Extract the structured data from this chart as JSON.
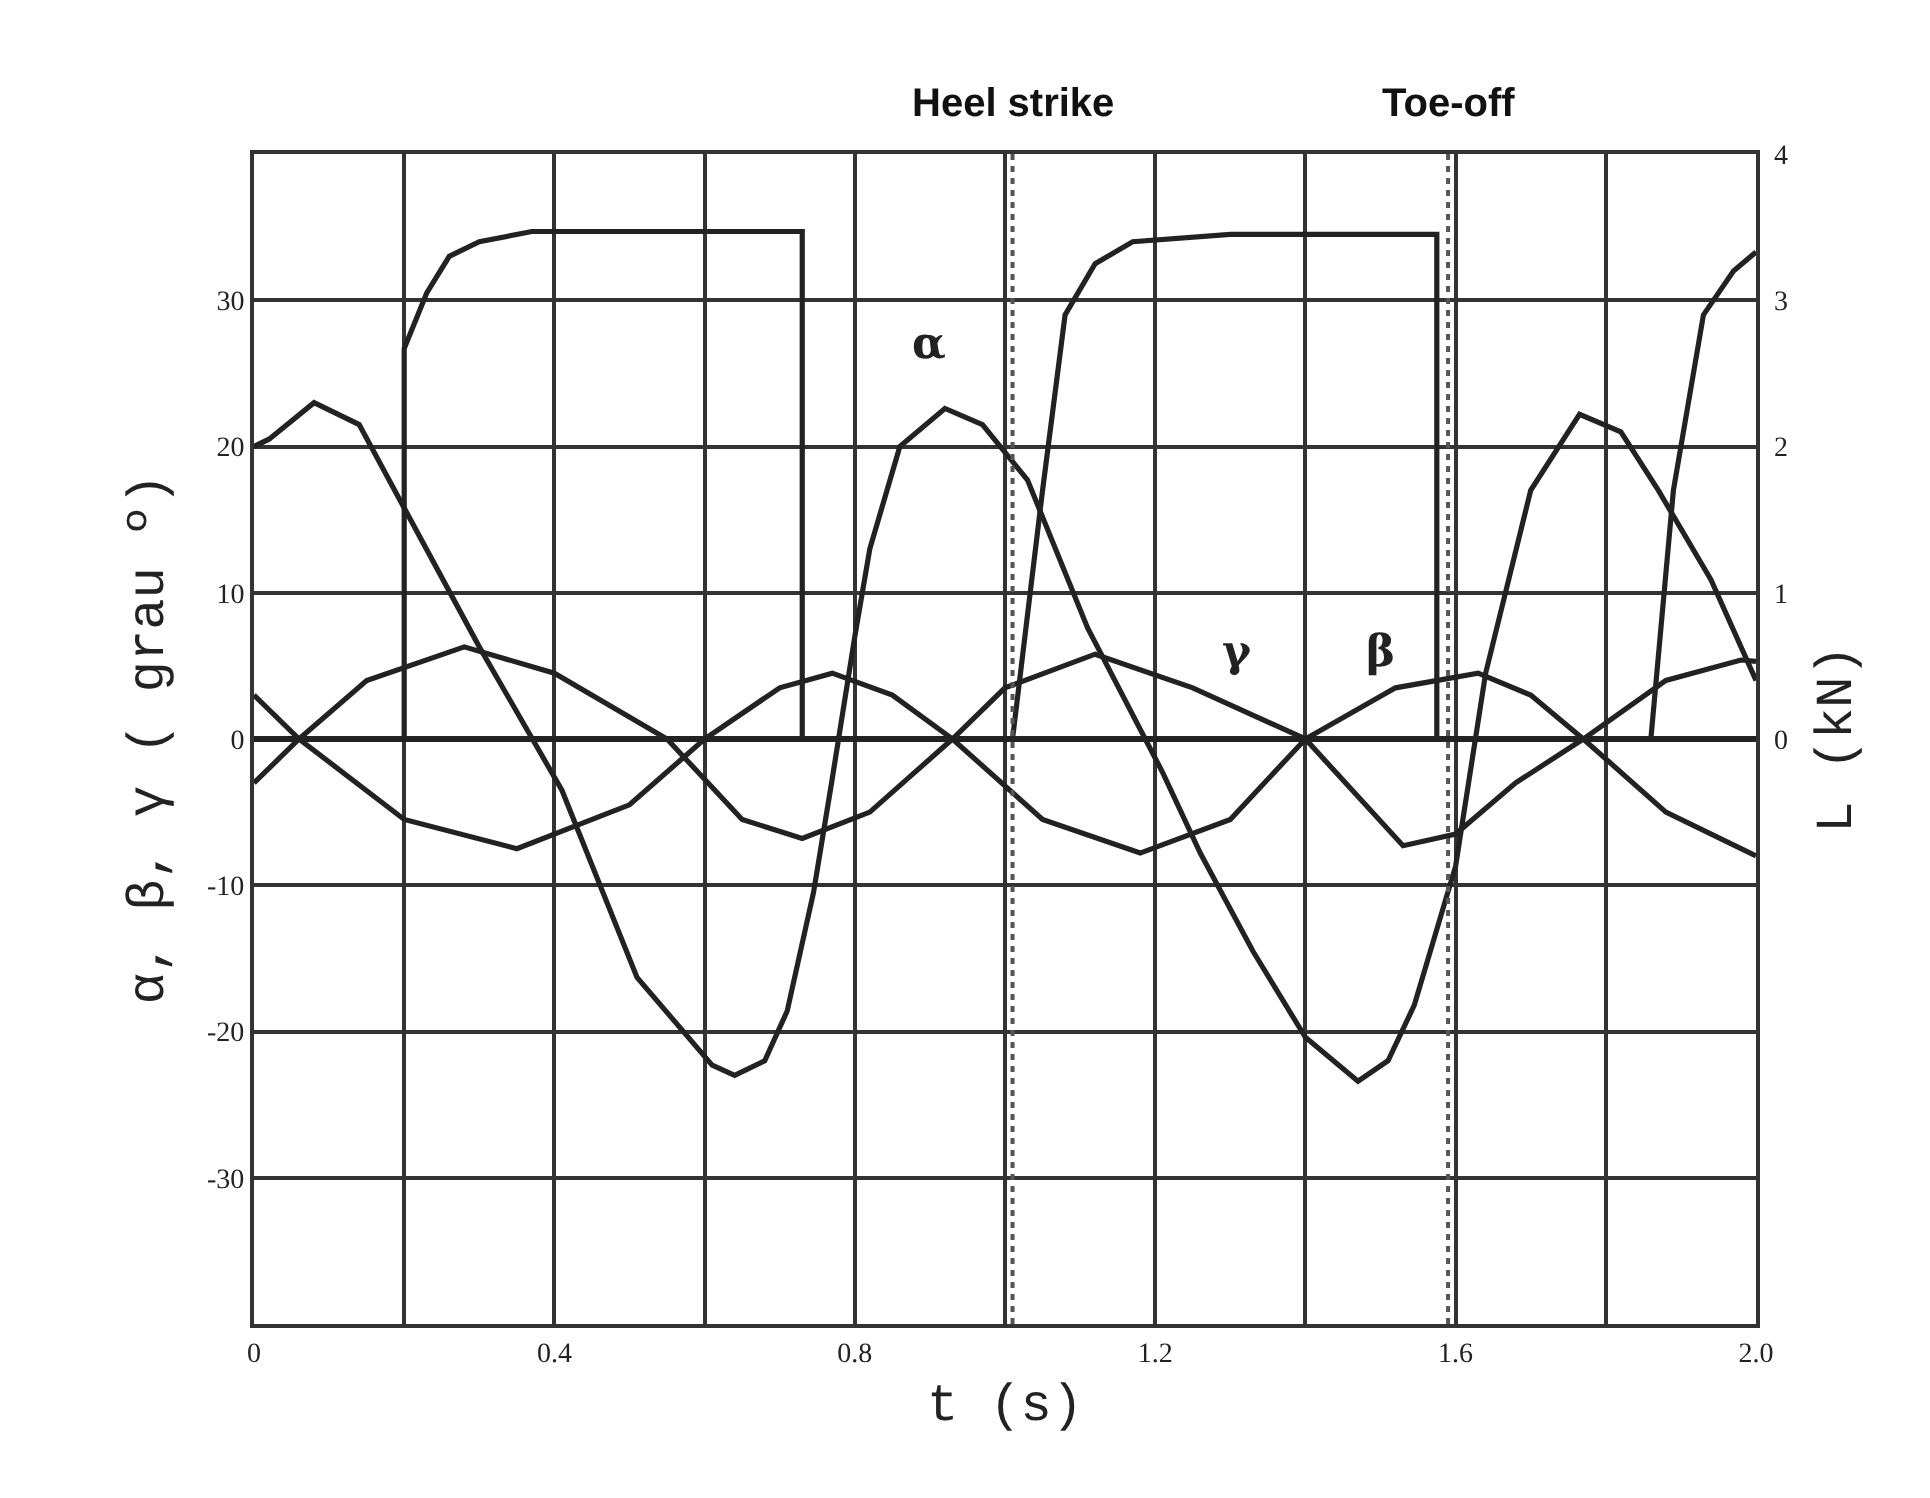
{
  "chart_data": {
    "type": "line",
    "xlabel": "t (s)",
    "ylabel": "α, β, γ ( grau º)",
    "y2label": "L (kN)",
    "xlim": [
      0,
      2
    ],
    "xticks": [
      0,
      {
        "value": 0.2,
        "label": null
      },
      {
        "value": 0.4,
        "label": "0.4"
      },
      {
        "value": 0.6,
        "label": null
      },
      {
        "value": 0.8,
        "label": "0.8"
      },
      {
        "value": 1,
        "label": null
      },
      {
        "value": 1.2,
        "label": "1.2"
      },
      {
        "value": 1.4,
        "label": null
      },
      {
        "value": 1.6,
        "label": "1.6"
      },
      {
        "value": 1.8,
        "label": null
      },
      {
        "value": 2,
        "label": "2.0"
      }
    ],
    "ylim": [
      -40,
      40
    ],
    "yticks": [
      -30,
      -20,
      -10,
      0,
      10,
      20,
      30
    ],
    "y2lim": [
      -4,
      4
    ],
    "y2ticks": [
      0,
      1,
      2,
      3,
      4
    ],
    "grid": true,
    "legend": false,
    "marker": "none",
    "line_style": "solid",
    "series": [
      {
        "name": "α",
        "color": "#222222",
        "x": [
          0,
          0.02,
          0.08,
          0.14,
          0.2,
          0.3,
          0.41,
          0.51,
          0.61,
          0.64,
          0.68,
          0.71,
          0.745,
          0.77,
          0.8,
          0.82,
          0.86,
          0.92,
          0.97,
          1.03,
          1.11,
          1.21,
          1.26,
          1.33,
          1.4,
          1.47,
          1.51,
          1.545,
          1.6,
          1.64,
          1.7,
          1.765,
          1.82,
          1.87,
          1.94,
          2.0
        ],
        "values": [
          20,
          20.5,
          23,
          21.5,
          15.8,
          6.3,
          -3.5,
          -16.3,
          -22.3,
          -23,
          -22,
          -18.6,
          -10.5,
          -2.7,
          7,
          13,
          20,
          22.6,
          21.5,
          17.7,
          7.6,
          -2.3,
          -7.8,
          -14.5,
          -20.4,
          -23.4,
          -22,
          -18.2,
          -8.7,
          4.5,
          17,
          22.2,
          21,
          17,
          10.9,
          4
        ]
      },
      {
        "name": "β",
        "color": "#222222",
        "x": [
          0,
          0.06,
          0.2,
          0.35,
          0.5,
          0.6,
          0.7,
          0.77,
          0.85,
          0.93,
          1.05,
          1.18,
          1.3,
          1.4,
          1.52,
          1.63,
          1.7,
          1.77,
          1.88,
          2.0
        ],
        "values": [
          3,
          0,
          -5.5,
          -7.5,
          -4.5,
          0,
          3.5,
          4.5,
          3,
          0,
          -5.5,
          -7.8,
          -5.5,
          0,
          3.5,
          4.5,
          3,
          0,
          -5,
          -8
        ]
      },
      {
        "name": "γ",
        "color": "#222222",
        "x": [
          0,
          0.06,
          0.15,
          0.28,
          0.4,
          0.55,
          0.65,
          0.73,
          0.82,
          0.93,
          1.0,
          1.12,
          1.25,
          1.4,
          1.53,
          1.6,
          1.68,
          1.77,
          1.88,
          1.98,
          2.0
        ],
        "values": [
          -3,
          0,
          4,
          6.3,
          4.5,
          0,
          -5.5,
          -6.8,
          -5,
          0,
          3.5,
          5.8,
          3.5,
          0,
          -7.3,
          -6.5,
          -3,
          0,
          4,
          5.4,
          5.3
        ]
      },
      {
        "color": "#222222",
        "axis": "y2",
        "x": [
          0,
          0.2,
          0.2,
          0.23,
          0.26,
          0.3,
          0.37,
          0.5,
          0.73,
          0.73,
          1.01,
          1.05,
          1.08,
          1.12,
          1.17,
          1.3,
          1.575,
          1.575,
          1.86,
          1.89,
          1.93,
          1.97,
          2.0
        ],
        "values": [
          0,
          0,
          2.67,
          3.05,
          3.3,
          3.4,
          3.47,
          3.47,
          3.47,
          0,
          0,
          1.7,
          2.9,
          3.25,
          3.4,
          3.45,
          3.45,
          0,
          0,
          1.7,
          2.9,
          3.2,
          3.33
        ]
      }
    ],
    "ref_lines": [
      {
        "axis": "x",
        "value": 1.01,
        "label": "Heel strike",
        "line_style": "dotted",
        "color": "#555555"
      },
      {
        "axis": "x",
        "value": 1.59,
        "label": "Toe-off",
        "line_style": "dotted",
        "color": "#555555"
      }
    ]
  }
}
